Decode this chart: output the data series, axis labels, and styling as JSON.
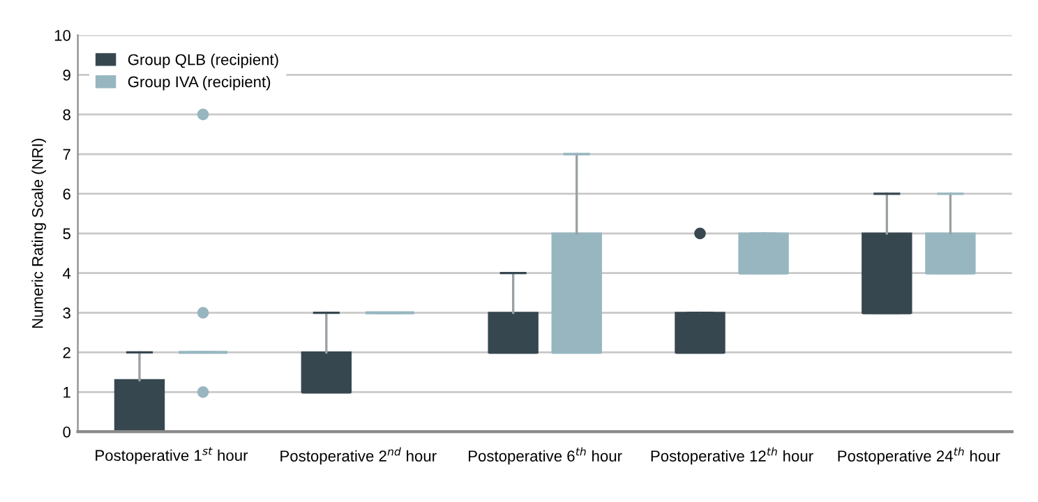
{
  "chart_data": {
    "type": "box",
    "ylabel": "Numeric Rating Scale (NRI)",
    "categories": [
      "Postoperative 1$^{st}$ hour",
      "Postoperative 2$^{nd}$ hour",
      "Postoperative 6$^{th}$ hour",
      "Postoperative 12$^{th}$ hour",
      "Postoperative 24$^{th}$ hour"
    ],
    "series": [
      {
        "name": "Group QLB (recipient)",
        "color": "#37474f",
        "boxes": [
          {
            "low": 0,
            "q1": 0,
            "median": 0,
            "q3": 1.3,
            "high": 2
          },
          {
            "low": 1,
            "q1": 1,
            "median": 1,
            "q3": 2,
            "high": 3
          },
          {
            "low": 2,
            "q1": 2,
            "median": 2,
            "q3": 3,
            "high": 4
          },
          {
            "low": 2,
            "q1": 2,
            "median": 2,
            "q3": 3,
            "high": 3,
            "outliers": [
              5
            ]
          },
          {
            "low": 3,
            "q1": 3,
            "median": 3,
            "q3": 5,
            "high": 6
          }
        ]
      },
      {
        "name": "Group IVA (recipient)",
        "color": "#97b6c0",
        "boxes": [
          {
            "low": 2,
            "q1": 2,
            "median": 2,
            "q3": 2,
            "high": 2,
            "outliers": [
              1,
              3,
              8
            ]
          },
          {
            "low": 3,
            "q1": 3,
            "median": 3,
            "q3": 3,
            "high": 3
          },
          {
            "low": 2,
            "q1": 2,
            "median": 2,
            "q3": 5,
            "high": 7
          },
          {
            "low": 4,
            "q1": 4,
            "median": 4,
            "q3": 5,
            "high": 5
          },
          {
            "low": 4,
            "q1": 4,
            "median": 4,
            "q3": 5,
            "high": 6
          }
        ]
      }
    ],
    "ylim": [
      0,
      10
    ],
    "yticks": [
      0,
      1,
      2,
      3,
      4,
      5,
      6,
      7,
      8,
      9,
      10
    ],
    "grid": "y",
    "legend": "top left"
  }
}
